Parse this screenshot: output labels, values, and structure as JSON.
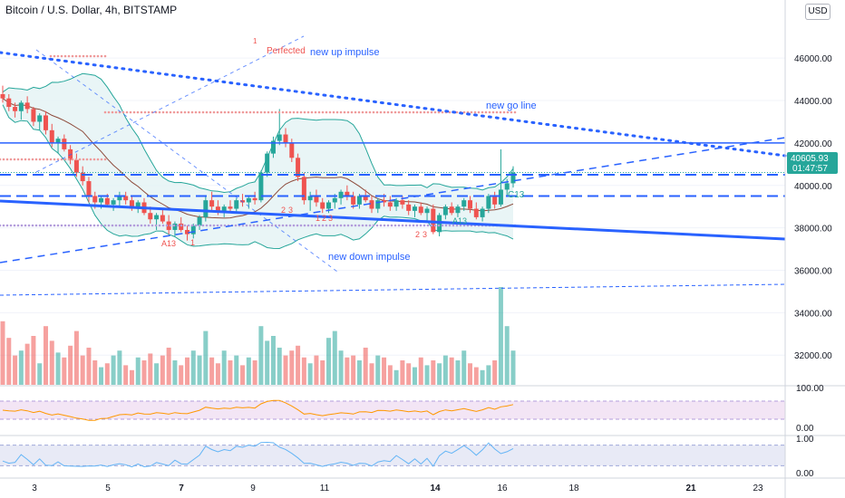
{
  "header": {
    "title": "Bitcoin / U.S. Dollar, 4h, BITSTAMP",
    "currency_button": "USD"
  },
  "price_badge": {
    "price": "40605.93",
    "countdown": "01:47:57"
  },
  "colors": {
    "up": "#26a69a",
    "down": "#ef5350",
    "trendline": "#2962ff",
    "bb_fill": "#e3f2f4",
    "rsi_fill": "#f3e5f5",
    "rsi_line": "#ff9800",
    "stoch_line": "#64b5f6"
  },
  "annotations": {
    "perfected": "Perfected",
    "new_up_impulse": "new up impulse",
    "new_go_line": "new go line",
    "new_down_impulse": "new down impulse",
    "a13_left": "A13",
    "a13_right": "A13",
    "c13": "C13",
    "td_count_labels": [
      "1",
      "2",
      "3",
      "1",
      "2",
      "3",
      "2",
      "3",
      "1"
    ]
  },
  "chart_data": {
    "type": "candlestick",
    "title": "Bitcoin / U.S. Dollar, 4h, BITSTAMP",
    "x_ticks": [
      "3",
      "5",
      "7",
      "9",
      "11",
      "14",
      "16",
      "18",
      "21",
      "23"
    ],
    "y_ticks": [
      "46000.00",
      "44000.00",
      "42000.00",
      "40000.00",
      "38000.00",
      "36000.00",
      "34000.00",
      "32000.00"
    ],
    "ylim": [
      30600,
      47800
    ],
    "last_price": 40605.93,
    "horizontal_levels": [
      42000,
      40500,
      39500
    ],
    "series": [
      {
        "name": "",
        "ohlc": [
          [
            44300,
            44700,
            43900,
            44100
          ],
          [
            44100,
            44300,
            43500,
            43700
          ],
          [
            43700,
            43900,
            43200,
            43500
          ],
          [
            43500,
            44000,
            43100,
            43900
          ],
          [
            43900,
            44200,
            43400,
            43600
          ],
          [
            43600,
            43700,
            42800,
            43000
          ],
          [
            43000,
            43400,
            42600,
            43300
          ],
          [
            43300,
            43500,
            42400,
            42600
          ],
          [
            42600,
            42900,
            41800,
            42000
          ],
          [
            42000,
            42300,
            41500,
            42200
          ],
          [
            42200,
            42400,
            41600,
            41700
          ],
          [
            41700,
            41900,
            41000,
            41200
          ],
          [
            41200,
            41500,
            40400,
            40600
          ],
          [
            40600,
            40900,
            40000,
            40200
          ],
          [
            40200,
            40400,
            39200,
            39500
          ],
          [
            39500,
            39700,
            38900,
            39200
          ],
          [
            39200,
            39500,
            38900,
            39400
          ],
          [
            39400,
            39600,
            39000,
            39100
          ],
          [
            39100,
            39400,
            38800,
            39300
          ],
          [
            39300,
            39700,
            39000,
            39500
          ],
          [
            39500,
            39700,
            39100,
            39300
          ],
          [
            39300,
            39500,
            38800,
            38900
          ],
          [
            38900,
            39300,
            38700,
            39200
          ],
          [
            39200,
            39400,
            38600,
            38700
          ],
          [
            38700,
            39000,
            38200,
            38400
          ],
          [
            38400,
            38700,
            37900,
            38600
          ],
          [
            38600,
            38900,
            38200,
            38300
          ],
          [
            38300,
            38600,
            37700,
            37900
          ],
          [
            37900,
            38300,
            37600,
            38200
          ],
          [
            38200,
            38500,
            37800,
            37900
          ],
          [
            37900,
            38100,
            37400,
            37700
          ],
          [
            37700,
            38200,
            37500,
            38100
          ],
          [
            38100,
            38600,
            37900,
            38500
          ],
          [
            38500,
            39500,
            38300,
            39300
          ],
          [
            39300,
            39700,
            38800,
            39000
          ],
          [
            39000,
            39300,
            38600,
            38800
          ],
          [
            38800,
            39100,
            38500,
            39000
          ],
          [
            39000,
            39300,
            38700,
            38900
          ],
          [
            38900,
            39400,
            38700,
            39300
          ],
          [
            39300,
            39600,
            39000,
            39200
          ],
          [
            39200,
            39500,
            38900,
            39400
          ],
          [
            39400,
            39700,
            39100,
            39300
          ],
          [
            39300,
            40700,
            39200,
            40600
          ],
          [
            40600,
            41600,
            40400,
            41500
          ],
          [
            41500,
            42300,
            41300,
            42100
          ],
          [
            42100,
            43600,
            41900,
            42400
          ],
          [
            42400,
            42700,
            41800,
            42000
          ],
          [
            42000,
            42200,
            41100,
            41300
          ],
          [
            41300,
            41500,
            40200,
            40400
          ],
          [
            40400,
            40600,
            39100,
            39300
          ],
          [
            39300,
            39700,
            38800,
            39500
          ],
          [
            39500,
            39800,
            39000,
            39200
          ],
          [
            39200,
            39400,
            38700,
            38900
          ],
          [
            38900,
            39300,
            38700,
            39200
          ],
          [
            39200,
            39600,
            38900,
            39400
          ],
          [
            39400,
            39800,
            39100,
            39700
          ],
          [
            39700,
            40000,
            39300,
            39500
          ],
          [
            39500,
            39700,
            38900,
            39100
          ],
          [
            39100,
            39600,
            38900,
            39500
          ],
          [
            39500,
            39800,
            39200,
            39300
          ],
          [
            39300,
            39500,
            38700,
            38900
          ],
          [
            38900,
            39400,
            38700,
            39300
          ],
          [
            39300,
            39600,
            39000,
            39200
          ],
          [
            39200,
            39500,
            38800,
            39000
          ],
          [
            39000,
            39400,
            38800,
            39300
          ],
          [
            39300,
            39500,
            38900,
            39100
          ],
          [
            39100,
            39300,
            38600,
            38800
          ],
          [
            38800,
            39100,
            38500,
            39000
          ],
          [
            39000,
            39200,
            38600,
            38700
          ],
          [
            38700,
            39000,
            38300,
            38900
          ],
          [
            38900,
            39100,
            37700,
            37800
          ],
          [
            37800,
            38700,
            37600,
            38600
          ],
          [
            38600,
            39100,
            38400,
            39000
          ],
          [
            39000,
            39200,
            38600,
            38700
          ],
          [
            38700,
            39100,
            38500,
            39000
          ],
          [
            39000,
            39400,
            38800,
            39300
          ],
          [
            39300,
            39500,
            38700,
            38900
          ],
          [
            38900,
            39200,
            38400,
            38500
          ],
          [
            38500,
            39000,
            38300,
            38900
          ],
          [
            38900,
            39600,
            38700,
            39500
          ],
          [
            39500,
            39700,
            38900,
            39100
          ],
          [
            39100,
            41700,
            39000,
            39800
          ],
          [
            39800,
            40300,
            39500,
            40100
          ],
          [
            40100,
            40900,
            39900,
            40606
          ]
        ],
        "volume": [
          0.65,
          0.48,
          0.3,
          0.35,
          0.42,
          0.5,
          0.22,
          0.6,
          0.45,
          0.33,
          0.28,
          0.4,
          0.55,
          0.3,
          0.38,
          0.25,
          0.18,
          0.22,
          0.3,
          0.35,
          0.2,
          0.15,
          0.28,
          0.25,
          0.32,
          0.22,
          0.3,
          0.38,
          0.25,
          0.2,
          0.28,
          0.35,
          0.3,
          0.55,
          0.28,
          0.22,
          0.35,
          0.25,
          0.3,
          0.2,
          0.28,
          0.25,
          0.6,
          0.45,
          0.5,
          0.38,
          0.3,
          0.35,
          0.4,
          0.28,
          0.22,
          0.3,
          0.25,
          0.48,
          0.55,
          0.35,
          0.28,
          0.3,
          0.25,
          0.38,
          0.22,
          0.3,
          0.28,
          0.2,
          0.15,
          0.25,
          0.22,
          0.18,
          0.28,
          0.2,
          0.25,
          0.22,
          0.3,
          0.28,
          0.25,
          0.35,
          0.22,
          0.18,
          0.15,
          0.2,
          0.25,
          1.0,
          0.6,
          0.35
        ]
      }
    ],
    "rsi": {
      "ylim": [
        0,
        100
      ],
      "ticks": [
        "100.00",
        "0.00"
      ],
      "band": [
        30,
        70
      ]
    },
    "stoch": {
      "ylim": [
        0,
        1
      ],
      "ticks": [
        "1.00",
        "0.00"
      ],
      "band": [
        0.2,
        0.8
      ]
    }
  }
}
